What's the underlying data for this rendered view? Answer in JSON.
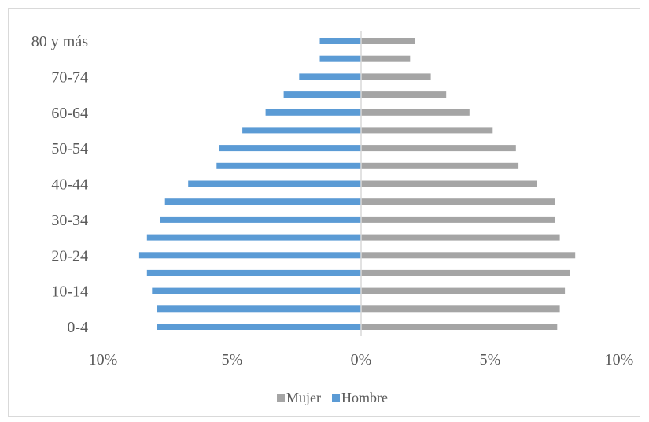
{
  "chart_data": {
    "type": "bar",
    "orientation": "horizontal",
    "subtype": "population-pyramid",
    "categories": [
      "0-4",
      "5-9",
      "10-14",
      "15-19",
      "20-24",
      "25-29",
      "30-34",
      "35-39",
      "40-44",
      "45-49",
      "50-54",
      "55-59",
      "60-64",
      "65-69",
      "70-74",
      "75-79",
      "80 y más"
    ],
    "category_tick_labels": [
      "0-4",
      "10-14",
      "20-24",
      "30-34",
      "40-44",
      "50-54",
      "60-64",
      "70-74",
      "80 y más"
    ],
    "series": [
      {
        "name": "Hombre",
        "color": "#5b9bd5",
        "side": "left",
        "values": [
          7.9,
          7.9,
          8.1,
          8.3,
          8.6,
          8.3,
          7.8,
          7.6,
          6.7,
          5.6,
          5.5,
          4.6,
          3.7,
          3.0,
          2.4,
          1.6,
          1.6
        ]
      },
      {
        "name": "Mujer",
        "color": "#a5a5a5",
        "side": "right",
        "values": [
          7.6,
          7.7,
          7.9,
          8.1,
          8.3,
          7.7,
          7.5,
          7.5,
          6.8,
          6.1,
          6.0,
          5.1,
          4.2,
          3.3,
          2.7,
          1.9,
          2.1
        ]
      }
    ],
    "x_ticks": [
      "10%",
      "5%",
      "0%",
      "5%",
      "10%"
    ],
    "xlim": [
      -10,
      10
    ],
    "legend_order": [
      "Mujer",
      "Hombre"
    ],
    "legend_position": "bottom",
    "grid": false
  }
}
